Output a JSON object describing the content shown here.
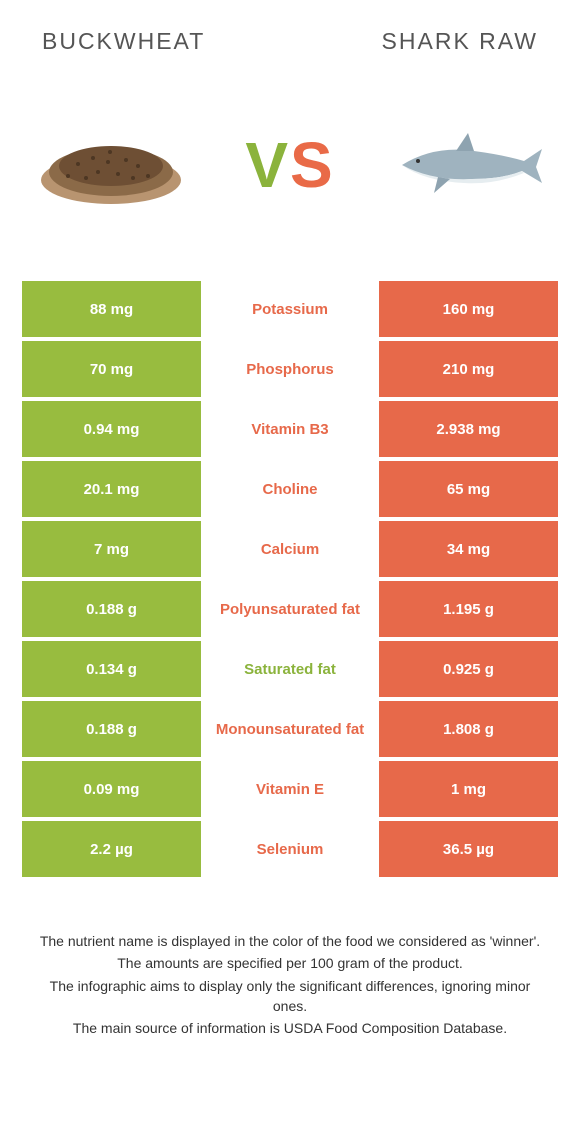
{
  "header": {
    "left": "Buckwheat",
    "right": "Shark raw"
  },
  "vs": {
    "v": "V",
    "s": "S"
  },
  "colors": {
    "left_bg": "#98bc3f",
    "right_bg": "#e7694a",
    "left_text": "#8bb33c",
    "right_text": "#e7694a",
    "row_gap": "#ffffff"
  },
  "table": {
    "rows": [
      {
        "left": "88 mg",
        "mid": "Potassium",
        "right": "160 mg",
        "winner": "right"
      },
      {
        "left": "70 mg",
        "mid": "Phosphorus",
        "right": "210 mg",
        "winner": "right"
      },
      {
        "left": "0.94 mg",
        "mid": "Vitamin B3",
        "right": "2.938 mg",
        "winner": "right"
      },
      {
        "left": "20.1 mg",
        "mid": "Choline",
        "right": "65 mg",
        "winner": "right"
      },
      {
        "left": "7 mg",
        "mid": "Calcium",
        "right": "34 mg",
        "winner": "right"
      },
      {
        "left": "0.188 g",
        "mid": "Polyunsaturated fat",
        "right": "1.195 g",
        "winner": "right"
      },
      {
        "left": "0.134 g",
        "mid": "Saturated fat",
        "right": "0.925 g",
        "winner": "left"
      },
      {
        "left": "0.188 g",
        "mid": "Monounsaturated fat",
        "right": "1.808 g",
        "winner": "right"
      },
      {
        "left": "0.09 mg",
        "mid": "Vitamin E",
        "right": "1 mg",
        "winner": "right"
      },
      {
        "left": "2.2 µg",
        "mid": "Selenium",
        "right": "36.5 µg",
        "winner": "right"
      }
    ]
  },
  "footer": {
    "lines": [
      "The nutrient name is displayed in the color of the food we considered as 'winner'.",
      "The amounts are specified per 100 gram of the product.",
      "The infographic aims to display only the significant differences, ignoring minor ones.",
      "The main source of information is USDA Food Composition Database."
    ]
  }
}
